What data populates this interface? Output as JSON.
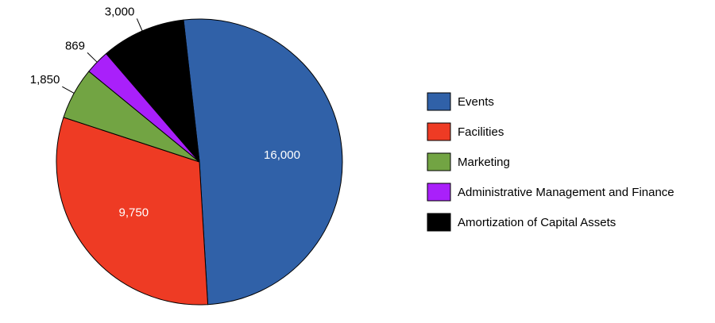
{
  "chart_data": {
    "type": "pie",
    "title": "",
    "legend_position": "right",
    "slices": [
      {
        "label": "Events",
        "value": 16000,
        "value_label": "16,000",
        "color": "#3061A8",
        "label_placement": "inside",
        "label_color": "#ffffff"
      },
      {
        "label": "Facilities",
        "value": 9750,
        "value_label": "9,750",
        "color": "#EE3B24",
        "label_placement": "inside",
        "label_color": "#ffffff"
      },
      {
        "label": "Marketing",
        "value": 1850,
        "value_label": "1,850",
        "color": "#72A443",
        "label_placement": "outside",
        "label_color": "#000000"
      },
      {
        "label": "Administrative Management and Finance",
        "value": 869,
        "value_label": "869",
        "color": "#A920FA",
        "label_placement": "outside",
        "label_color": "#000000"
      },
      {
        "label": "Amortization of Capital Assets",
        "value": 3000,
        "value_label": "3,000",
        "color": "#000000",
        "label_placement": "outside",
        "label_color": "#000000"
      }
    ]
  }
}
